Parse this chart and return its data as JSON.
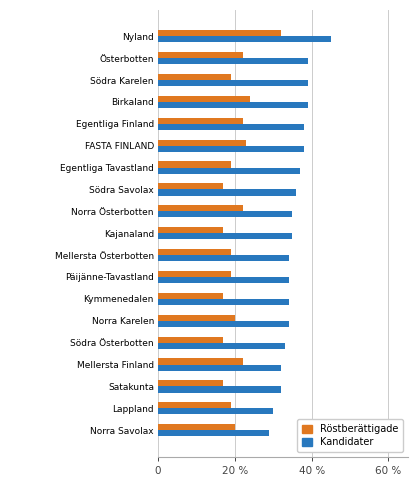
{
  "categories": [
    "Nyland",
    "Österbotten",
    "Södra Karelen",
    "Birkaland",
    "Egentliga Finland",
    "FASTA FINLAND",
    "Egentliga Tavastland",
    "Södra Savolax",
    "Norra Österbotten",
    "Kajanaland",
    "Mellersta Österbotten",
    "Päijänne-Tavastland",
    "Kymmenedalen",
    "Norra Karelen",
    "Södra Österbotten",
    "Mellersta Finland",
    "Satakunta",
    "Lappland",
    "Norra Savolax"
  ],
  "rostberättigade": [
    32,
    22,
    19,
    24,
    22,
    23,
    19,
    17,
    22,
    17,
    19,
    19,
    17,
    20,
    17,
    22,
    17,
    19,
    20
  ],
  "kandidater": [
    45,
    39,
    39,
    39,
    38,
    38,
    37,
    36,
    35,
    35,
    34,
    34,
    34,
    34,
    33,
    32,
    32,
    30,
    29
  ],
  "bar_color_orange": "#E07820",
  "bar_color_blue": "#2878BE",
  "xlim": [
    0,
    65
  ],
  "xtick_positions": [
    0,
    20,
    40,
    60
  ],
  "xtick_labels": [
    "0",
    "20 %",
    "40 %",
    "60 %"
  ],
  "legend_labels": [
    "Röstberättigade",
    "Kandidater"
  ],
  "grid_color": "#cccccc",
  "background_color": "#ffffff",
  "figure_width": 4.16,
  "figure_height": 4.91,
  "dpi": 100
}
